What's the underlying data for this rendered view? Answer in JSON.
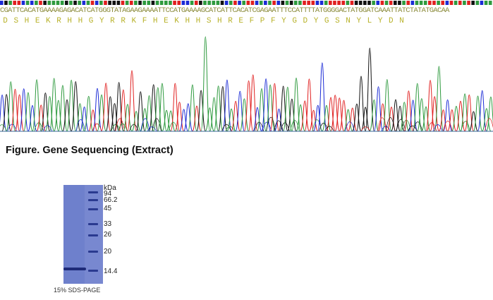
{
  "sequence": {
    "dna": "CGATTCACATGAAAAGAGACATCATGGGTATAGAAGAAAATTCCATGAAAAGCATCATTCACATCGAGAATTTCCATTTTATGGGGACTATGGATCAAATTATCTATATGACAA",
    "amino_acids": [
      "D",
      "S",
      "H",
      "E",
      "K",
      "R",
      "H",
      "H",
      "G",
      "Y",
      "R",
      "R",
      "K",
      "F",
      "H",
      "E",
      "K",
      "H",
      "H",
      "S",
      "H",
      "R",
      "E",
      "F",
      "P",
      "F",
      "Y",
      "G",
      "D",
      "Y",
      "G",
      "S",
      "N",
      "Y",
      "L",
      "Y",
      "D",
      "N"
    ]
  },
  "colors": {
    "A": "#2e9a3e",
    "C": "#1b2bd6",
    "G": "#111111",
    "T": "#e02020"
  },
  "figure_caption": "Figure. Gene Sequencing (Extract)",
  "gel": {
    "unit": "kDa",
    "markers": [
      "94",
      "66.2",
      "45",
      "33",
      "26",
      "20",
      "14.4"
    ],
    "caption": "15% SDS-PAGE"
  }
}
